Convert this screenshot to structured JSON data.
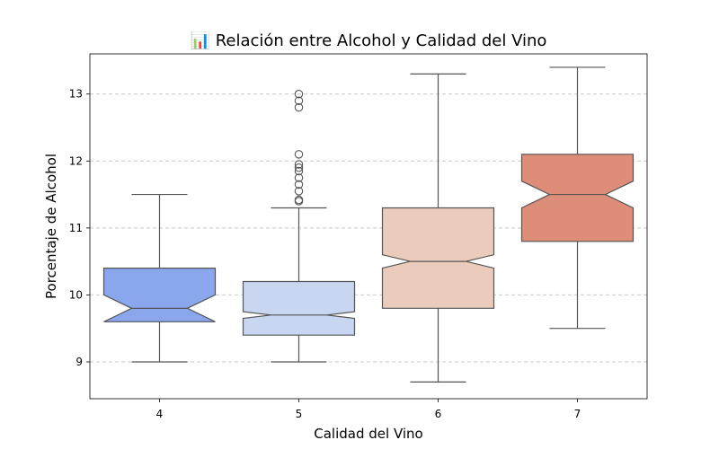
{
  "chart_data": {
    "type": "boxplot",
    "title": "📊 Relación entre Alcohol y Calidad del Vino",
    "xlabel": "Calidad del Vino",
    "ylabel": "Porcentaje de Alcohol",
    "categories": [
      "4",
      "5",
      "6",
      "7"
    ],
    "yticks": [
      "9",
      "10",
      "11",
      "12",
      "13"
    ],
    "ylim": [
      8.45,
      13.6
    ],
    "grid": "y-dashed",
    "notched": true,
    "boxes": [
      {
        "category": "4",
        "whisker_low": 9.0,
        "q1": 9.6,
        "median": 9.8,
        "q3": 10.4,
        "whisker_high": 11.5,
        "notch_low": 9.6,
        "notch_high": 10.0,
        "outliers": [],
        "color": "#8aa6ec"
      },
      {
        "category": "5",
        "whisker_low": 9.0,
        "q1": 9.4,
        "median": 9.7,
        "q3": 10.2,
        "whisker_high": 11.3,
        "notch_low": 9.65,
        "notch_high": 9.75,
        "outliers": [
          11.4,
          11.42,
          11.55,
          11.65,
          11.75,
          11.85,
          11.9,
          11.95,
          12.1,
          12.8,
          12.9,
          13.0
        ],
        "color": "#c8d6f2"
      },
      {
        "category": "6",
        "whisker_low": 8.7,
        "q1": 9.8,
        "median": 10.5,
        "q3": 11.3,
        "whisker_high": 13.3,
        "notch_low": 10.4,
        "notch_high": 10.6,
        "outliers": [],
        "color": "#eacbbc"
      },
      {
        "category": "7",
        "whisker_low": 9.5,
        "q1": 10.8,
        "median": 11.5,
        "q3": 12.1,
        "whisker_high": 13.4,
        "notch_low": 11.3,
        "notch_high": 11.7,
        "outliers": [],
        "color": "#de8e78"
      }
    ]
  }
}
